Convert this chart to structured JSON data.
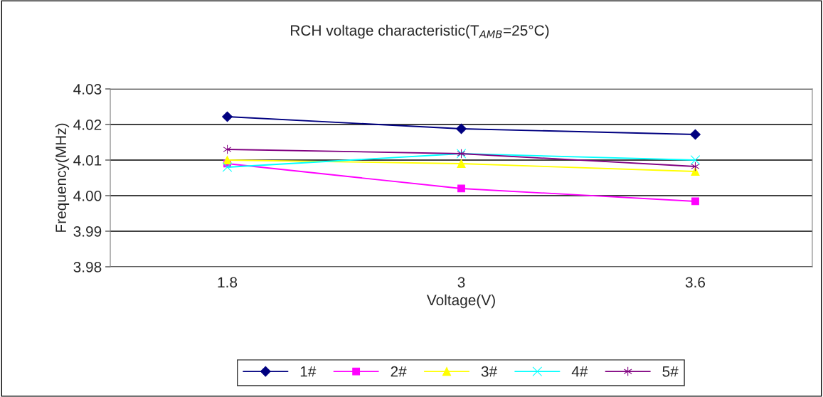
{
  "chart_data": {
    "type": "line",
    "title": "RCH voltage characteristic(T$_{AMB}$=25°C)",
    "xlabel": "Voltage(V)",
    "ylabel": "Frequency(MHz)",
    "categories": [
      "1.8",
      "3",
      "3.6"
    ],
    "series": [
      {
        "name": "1#",
        "color": "#000080",
        "marker": "diamond",
        "values": [
          4.0222,
          4.0188,
          4.0172
        ]
      },
      {
        "name": "2#",
        "color": "#ff00ff",
        "marker": "square",
        "values": [
          4.009,
          4.002,
          3.9984
        ]
      },
      {
        "name": "3#",
        "color": "#ffff00",
        "marker": "triangle",
        "values": [
          4.01,
          4.009,
          4.0068
        ]
      },
      {
        "name": "4#",
        "color": "#00ffff",
        "marker": "cross",
        "values": [
          4.008,
          4.0118,
          4.01
        ]
      },
      {
        "name": "5#",
        "color": "#800080",
        "marker": "cross",
        "values": [
          4.013,
          4.0118,
          4.0082
        ]
      }
    ],
    "ylim": [
      3.98,
      4.03
    ],
    "yticks": [
      3.98,
      3.99,
      {
        "value": 4.0,
        "label": "4.00"
      },
      4.01,
      4.02,
      4.03
    ],
    "grid": "y",
    "legend": "bottom",
    "line_style": "solid"
  }
}
